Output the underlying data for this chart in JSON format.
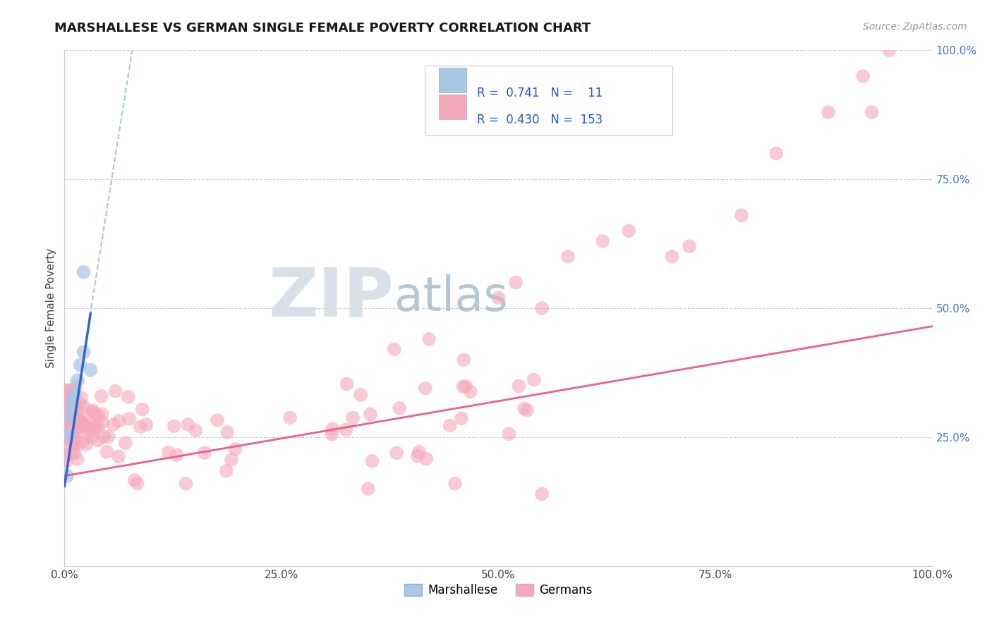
{
  "title": "MARSHALLESE VS GERMAN SINGLE FEMALE POVERTY CORRELATION CHART",
  "source": "Source: ZipAtlas.com",
  "ylabel": "Single Female Poverty",
  "marshallese_color": "#a8c8e8",
  "german_color": "#f5a8bc",
  "marshallese_line_color": "#3366cc",
  "german_line_color": "#f06080",
  "dash_line_color": "#99bbdd",
  "legend_R1": "0.741",
  "legend_N1": "11",
  "legend_R2": "0.430",
  "legend_N2": "153",
  "watermark_zip": "ZIP",
  "watermark_atlas": "atlas",
  "watermark_zip_color": "#c8d4e0",
  "watermark_atlas_color": "#a8bcd4",
  "title_fontsize": 13,
  "source_fontsize": 10,
  "tick_fontsize": 11,
  "ylabel_fontsize": 11
}
